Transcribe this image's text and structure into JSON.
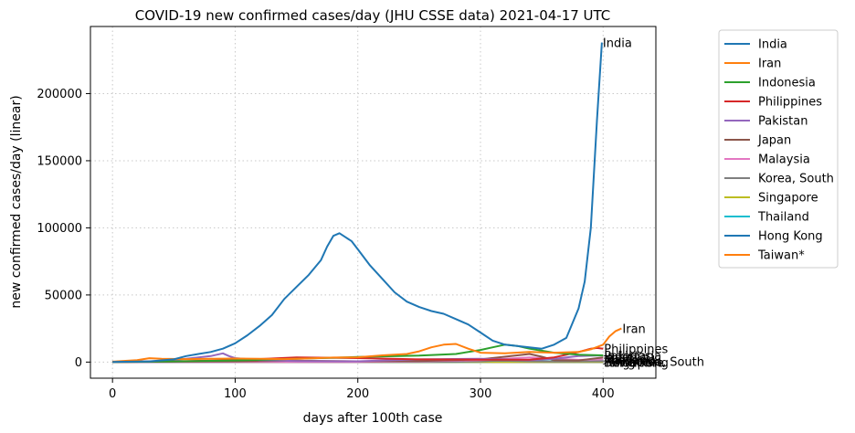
{
  "chart_data": {
    "type": "line",
    "title": "COVID-19 new confirmed cases/day (JHU CSSE data) 2021-04-17 UTC",
    "xlabel": "days after 100th case",
    "ylabel": "new confirmed cases/day (linear)",
    "xlim": [
      -18,
      443
    ],
    "ylim": [
      -12000,
      250000
    ],
    "xticks": [
      0,
      100,
      200,
      300,
      400
    ],
    "yticks": [
      0,
      50000,
      100000,
      150000,
      200000
    ],
    "grid": true,
    "legend_position": "outside-right",
    "series": [
      {
        "name": "India",
        "color": "#1f77b4",
        "end_label": "India",
        "x": [
          0,
          30,
          50,
          60,
          70,
          80,
          90,
          100,
          110,
          120,
          130,
          140,
          150,
          160,
          170,
          175,
          180,
          185,
          190,
          195,
          200,
          210,
          220,
          230,
          240,
          250,
          260,
          270,
          280,
          290,
          300,
          310,
          320,
          330,
          340,
          350,
          360,
          370,
          380,
          385,
          390,
          395,
          399
        ],
        "y": [
          100,
          500,
          2000,
          4500,
          6000,
          7500,
          10000,
          14000,
          20000,
          27000,
          35000,
          47000,
          56000,
          65000,
          76000,
          86000,
          94000,
          96000,
          93000,
          90000,
          84000,
          72000,
          62000,
          52000,
          45000,
          41000,
          38000,
          36000,
          32000,
          28000,
          22000,
          16000,
          13000,
          12000,
          11000,
          10000,
          13000,
          18000,
          40000,
          60000,
          100000,
          180000,
          238000
        ]
      },
      {
        "name": "Iran",
        "color": "#ff7f0e",
        "end_label": "Iran",
        "x": [
          0,
          20,
          30,
          40,
          60,
          80,
          100,
          120,
          140,
          160,
          180,
          200,
          220,
          240,
          250,
          260,
          270,
          280,
          290,
          300,
          320,
          340,
          360,
          380,
          390,
          400,
          405,
          410,
          415
        ],
        "y": [
          300,
          1500,
          2900,
          2500,
          2200,
          2500,
          2600,
          2500,
          2200,
          2700,
          3400,
          3600,
          5000,
          6000,
          8000,
          11000,
          13000,
          13500,
          10000,
          7000,
          6500,
          7500,
          7000,
          7500,
          9500,
          13000,
          19000,
          23000,
          25000
        ]
      },
      {
        "name": "Indonesia",
        "color": "#2ca02c",
        "end_label": "Indonesia",
        "x": [
          0,
          50,
          100,
          150,
          200,
          250,
          280,
          300,
          310,
          320,
          330,
          340,
          360,
          380,
          400
        ],
        "y": [
          50,
          500,
          1200,
          2500,
          3800,
          4800,
          6000,
          9000,
          11000,
          13000,
          12000,
          10000,
          7000,
          5500,
          5000
        ]
      },
      {
        "name": "Philippines",
        "color": "#d62728",
        "end_label": "Philippines",
        "x": [
          0,
          50,
          100,
          150,
          200,
          250,
          300,
          340,
          360,
          370,
          380,
          390,
          395,
          400
        ],
        "y": [
          50,
          500,
          1500,
          3500,
          3000,
          2000,
          1800,
          1800,
          3500,
          5500,
          7500,
          10000,
          10500,
          10000
        ]
      },
      {
        "name": "Pakistan",
        "color": "#9467bd",
        "end_label": "Pakistan",
        "x": [
          0,
          40,
          60,
          80,
          90,
          95,
          100,
          120,
          150,
          200,
          250,
          300,
          320,
          340,
          360,
          380,
          400
        ],
        "y": [
          50,
          800,
          2500,
          4500,
          6500,
          4500,
          3000,
          1500,
          800,
          600,
          2000,
          2500,
          2000,
          1500,
          2500,
          4500,
          5000
        ]
      },
      {
        "name": "Japan",
        "color": "#8c564b",
        "end_label": "Japan",
        "x": [
          0,
          50,
          100,
          150,
          200,
          250,
          300,
          330,
          340,
          350,
          360,
          380,
          400
        ],
        "y": [
          20,
          300,
          500,
          1000,
          600,
          800,
          2000,
          5000,
          6000,
          4000,
          1500,
          1200,
          3500
        ]
      },
      {
        "name": "Malaysia",
        "color": "#e377c2",
        "end_label": "Malaysia",
        "x": [
          0,
          100,
          200,
          250,
          300,
          320,
          340,
          360,
          380,
          400
        ],
        "y": [
          20,
          50,
          100,
          500,
          1500,
          2500,
          3500,
          2500,
          1700,
          2000
        ]
      },
      {
        "name": "Korea, South",
        "color": "#7f7f7f",
        "end_label": "Korea, South",
        "x": [
          0,
          100,
          200,
          280,
          300,
          310,
          320,
          340,
          360,
          380,
          400,
          420
        ],
        "y": [
          100,
          80,
          100,
          200,
          500,
          900,
          1000,
          600,
          400,
          500,
          600,
          700
        ]
      },
      {
        "name": "Singapore",
        "color": "#bcbd22",
        "end_label": "Singapore",
        "x": [
          0,
          30,
          40,
          50,
          60,
          80,
          100,
          200,
          300,
          400
        ],
        "y": [
          10,
          500,
          800,
          1000,
          600,
          300,
          100,
          20,
          20,
          20
        ]
      },
      {
        "name": "Thailand",
        "color": "#17becf",
        "end_label": "Thailand",
        "x": [
          0,
          50,
          100,
          200,
          300,
          350,
          380,
          400
        ],
        "y": [
          20,
          30,
          10,
          10,
          50,
          700,
          200,
          1500
        ]
      },
      {
        "name": "Hong Kong",
        "color": "#1f77b4",
        "end_label": "Hong Kong",
        "x": [
          0,
          100,
          200,
          280,
          300,
          320,
          400
        ],
        "y": [
          10,
          50,
          100,
          150,
          80,
          20,
          10
        ]
      },
      {
        "name": "Taiwan*",
        "color": "#ff7f0e",
        "end_label": "Taiwan*",
        "x": [
          0,
          100,
          200,
          300,
          400
        ],
        "y": [
          5,
          5,
          5,
          5,
          5
        ]
      }
    ]
  }
}
